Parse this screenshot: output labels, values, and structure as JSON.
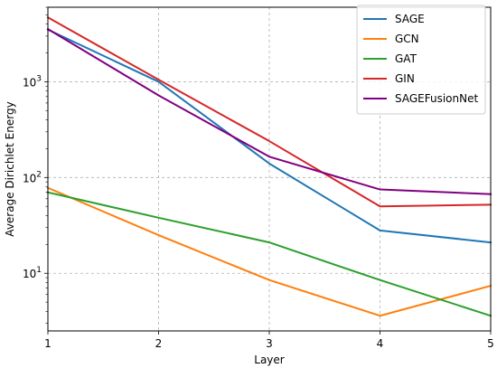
{
  "chart_data": {
    "type": "line",
    "xlabel": "Layer",
    "ylabel": "Average Dirichlet Energy",
    "yscale": "log",
    "x": [
      1,
      2,
      3,
      4,
      5
    ],
    "xlim": [
      1,
      5
    ],
    "ylim": [
      2.5,
      6000
    ],
    "x_ticks": [
      1,
      2,
      3,
      4,
      5
    ],
    "y_ticks": [
      {
        "value": 10,
        "base": "10",
        "exp": "1"
      },
      {
        "value": 100,
        "base": "10",
        "exp": "2"
      },
      {
        "value": 1000,
        "base": "10",
        "exp": "3"
      }
    ],
    "grid": true,
    "legend_position": "top-right",
    "series": [
      {
        "name": "SAGE",
        "color": "#1f77b4",
        "values": [
          3500,
          1000,
          140,
          28,
          21
        ]
      },
      {
        "name": "GCN",
        "color": "#ff7f0e",
        "values": [
          78,
          25,
          8.5,
          3.6,
          7.4
        ]
      },
      {
        "name": "GAT",
        "color": "#2ca02c",
        "values": [
          70,
          38,
          21,
          8.5,
          3.6
        ]
      },
      {
        "name": "GIN",
        "color": "#d62728",
        "values": [
          4700,
          1050,
          240,
          50,
          52
        ]
      },
      {
        "name": "SAGEFusionNet",
        "color": "#800080",
        "values": [
          3550,
          720,
          165,
          75,
          67
        ]
      }
    ]
  }
}
